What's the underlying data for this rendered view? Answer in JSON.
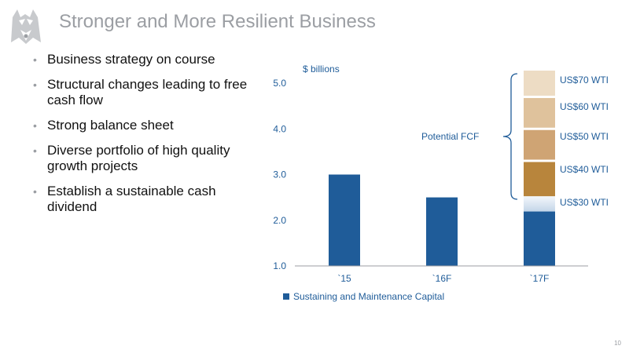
{
  "slide": {
    "title": "Stronger and More Resilient Business",
    "page_number": "10"
  },
  "bullets": [
    "Business strategy on course",
    "Structural changes leading to free cash flow",
    "Strong balance sheet",
    "Diverse portfolio of high quality growth projects",
    "Establish a sustainable cash dividend"
  ],
  "colors": {
    "title": "#9b9ea3",
    "bar": "#1f5c99",
    "axis_text": "#1f5c99",
    "fcf_segments": [
      "#eddcc4",
      "#dfc29c",
      "#cfa474",
      "#b8853c"
    ]
  },
  "chart_data": {
    "type": "bar",
    "ylabel": "$ billions",
    "ylim": [
      1.0,
      5.0
    ],
    "y_ticks": [
      "1.0",
      "2.0",
      "3.0",
      "4.0",
      "5.0"
    ],
    "categories": [
      "`15",
      "`16F",
      "`17F"
    ],
    "series": [
      {
        "name": "Sustaining and Maintenance Capital",
        "values": [
          3.0,
          2.5,
          2.5
        ]
      }
    ],
    "potential_fcf": {
      "label": "Potential FCF",
      "category": "`17F",
      "scenarios": [
        {
          "label": "US$30 WTI",
          "value": 2.5
        },
        {
          "label": "US$40 WTI",
          "value": 3.3
        },
        {
          "label": "US$50 WTI",
          "value": 4.0
        },
        {
          "label": "US$60 WTI",
          "value": 4.7
        },
        {
          "label": "US$70 WTI",
          "value": 5.3
        }
      ]
    },
    "legend": {
      "placement": "bottom-left"
    }
  }
}
